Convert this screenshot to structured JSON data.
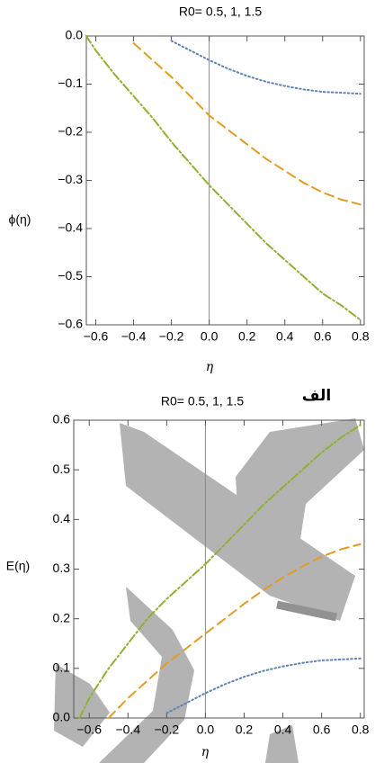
{
  "chart_data": [
    {
      "type": "line",
      "title": "R0= 0.5, 1, 1.5",
      "xlabel": "η",
      "ylabel": "ϕ(η)",
      "x": [
        -0.65,
        -0.6,
        -0.5,
        -0.4,
        -0.3,
        -0.2,
        -0.1,
        0,
        0.1,
        0.2,
        0.3,
        0.4,
        0.5,
        0.6,
        0.7,
        0.8
      ],
      "series": [
        {
          "color": "#5e81b5",
          "values": [
            null,
            null,
            null,
            null,
            null,
            -0.01,
            -0.03,
            -0.05,
            -0.068,
            -0.083,
            -0.095,
            -0.104,
            -0.111,
            -0.116,
            -0.118,
            -0.12
          ]
        },
        {
          "color": "#e19c24",
          "values": [
            null,
            null,
            null,
            -0.015,
            -0.05,
            -0.085,
            -0.125,
            -0.165,
            -0.195,
            -0.225,
            -0.255,
            -0.28,
            -0.305,
            -0.325,
            -0.34,
            -0.35
          ]
        },
        {
          "color": "#8fb032",
          "values": [
            0,
            -0.03,
            -0.08,
            -0.125,
            -0.17,
            -0.22,
            -0.265,
            -0.31,
            -0.35,
            -0.39,
            -0.43,
            -0.465,
            -0.5,
            -0.535,
            -0.56,
            -0.59
          ]
        }
      ],
      "xlim": [
        -0.65,
        0.82
      ],
      "ylim": [
        -0.6,
        0
      ],
      "xticks": [
        {
          "value": -0.6,
          "label": "−0.6"
        },
        {
          "value": -0.4,
          "label": "−0.4"
        },
        {
          "value": -0.2,
          "label": "−0.2"
        },
        {
          "value": 0,
          "label": "0.0"
        },
        0.2,
        0.4,
        0.6,
        0.8
      ],
      "yticks": [
        {
          "value": 0,
          "label": "0.0"
        },
        {
          "value": -0.1,
          "label": "−0.1"
        },
        {
          "value": -0.2,
          "label": "−0.2"
        },
        {
          "value": -0.3,
          "label": "−0.3"
        },
        {
          "value": -0.4,
          "label": "−0.4"
        },
        {
          "value": -0.5,
          "label": "−0.5"
        },
        {
          "value": -0.6,
          "label": "−0.6"
        }
      ]
    },
    {
      "type": "line",
      "title": "R0= 0.5, 1, 1.5",
      "annotation": "الف",
      "xlabel": "η",
      "ylabel": "E(η)",
      "x": [
        -0.65,
        -0.6,
        -0.5,
        -0.4,
        -0.3,
        -0.2,
        -0.1,
        0,
        0.1,
        0.2,
        0.3,
        0.4,
        0.5,
        0.6,
        0.7,
        0.8
      ],
      "series": [
        {
          "color": "#5e81b5",
          "values": [
            null,
            null,
            null,
            null,
            null,
            0.01,
            0.03,
            0.05,
            0.068,
            0.083,
            0.095,
            0.104,
            0.111,
            0.116,
            0.118,
            0.12
          ]
        },
        {
          "color": "#e19c24",
          "values": [
            null,
            null,
            0,
            0.04,
            0.075,
            0.11,
            0.14,
            0.17,
            0.2,
            0.23,
            0.258,
            0.283,
            0.305,
            0.325,
            0.34,
            0.35
          ]
        },
        {
          "color": "#8fb032",
          "values": [
            0,
            0.04,
            0.1,
            0.15,
            0.2,
            0.24,
            0.275,
            0.31,
            0.35,
            0.39,
            0.43,
            0.465,
            0.5,
            0.535,
            0.565,
            0.59
          ]
        }
      ],
      "xlim": [
        -0.68,
        0.82
      ],
      "ylim": [
        0,
        0.6
      ],
      "xticks": [
        {
          "value": -0.6,
          "label": "−0.6"
        },
        {
          "value": -0.4,
          "label": "−0.4"
        },
        {
          "value": -0.2,
          "label": "−0.2"
        },
        {
          "value": 0,
          "label": "0.0"
        },
        0.2,
        0.4,
        0.6,
        0.8
      ],
      "yticks": [
        {
          "value": 0,
          "label": "0.0"
        },
        0.1,
        0.2,
        0.3,
        0.4,
        0.5,
        0.6
      ]
    }
  ]
}
